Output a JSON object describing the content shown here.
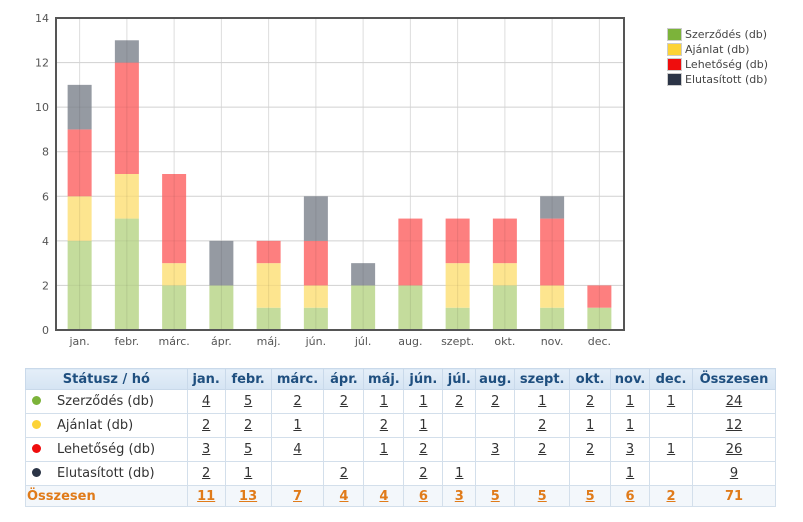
{
  "chart_data": {
    "type": "bar",
    "stacked": true,
    "title": "",
    "xlabel": "",
    "ylabel": "",
    "ylim": [
      0,
      14
    ],
    "yticks": [
      0,
      2,
      4,
      6,
      8,
      10,
      12,
      14
    ],
    "grid": true,
    "legend_position": "top-right",
    "categories": [
      "jan.",
      "febr.",
      "márc.",
      "ápr.",
      "máj.",
      "jún.",
      "júl.",
      "aug.",
      "szept.",
      "okt.",
      "nov.",
      "dec."
    ],
    "series": [
      {
        "name": "Szerződés (db)",
        "color": "#7cb33a",
        "bar_color": "#c4dc9c",
        "values": [
          4,
          5,
          2,
          2,
          1,
          1,
          2,
          2,
          1,
          2,
          1,
          1
        ]
      },
      {
        "name": "Ajánlat (db)",
        "color": "#fcd337",
        "bar_color": "#fde58f",
        "values": [
          2,
          2,
          1,
          0,
          2,
          1,
          0,
          0,
          2,
          1,
          1,
          0
        ]
      },
      {
        "name": "Lehetőség (db)",
        "color": "#ef0d0d",
        "bar_color": "#fd7f7f",
        "values": [
          3,
          5,
          4,
          0,
          1,
          2,
          0,
          3,
          2,
          2,
          3,
          1
        ]
      },
      {
        "name": "Elutasított (db)",
        "color": "#2b3446",
        "bar_color": "#959aa2",
        "values": [
          2,
          1,
          0,
          2,
          0,
          2,
          1,
          0,
          0,
          0,
          1,
          0
        ]
      }
    ]
  },
  "table": {
    "header": {
      "status_label": "Státusz / hó",
      "months": [
        "jan.",
        "febr.",
        "márc.",
        "ápr.",
        "máj.",
        "jún.",
        "júl.",
        "aug.",
        "szept.",
        "okt.",
        "nov.",
        "dec."
      ],
      "total_label": "Összesen"
    },
    "rows": [
      {
        "label": "Szerződés (db)",
        "color": "#7cb33a",
        "cells": [
          "4",
          "5",
          "2",
          "2",
          "1",
          "1",
          "2",
          "2",
          "1",
          "2",
          "1",
          "1"
        ],
        "total": "24"
      },
      {
        "label": "Ajánlat (db)",
        "color": "#fcd337",
        "cells": [
          "2",
          "2",
          "1",
          "",
          "2",
          "1",
          "",
          "",
          "2",
          "1",
          "1",
          ""
        ],
        "total": "12"
      },
      {
        "label": "Lehetőség (db)",
        "color": "#ef0d0d",
        "cells": [
          "3",
          "5",
          "4",
          "",
          "1",
          "2",
          "",
          "3",
          "2",
          "2",
          "3",
          "1"
        ],
        "total": "26"
      },
      {
        "label": "Elutasított (db)",
        "color": "#2b3446",
        "cells": [
          "2",
          "1",
          "",
          "2",
          "",
          "2",
          "1",
          "",
          "",
          "",
          "1",
          ""
        ],
        "total": "9"
      }
    ],
    "total_row": {
      "label": "Összesen",
      "cells": [
        "11",
        "13",
        "7",
        "4",
        "4",
        "6",
        "3",
        "5",
        "5",
        "5",
        "6",
        "2"
      ],
      "total": "71"
    }
  }
}
